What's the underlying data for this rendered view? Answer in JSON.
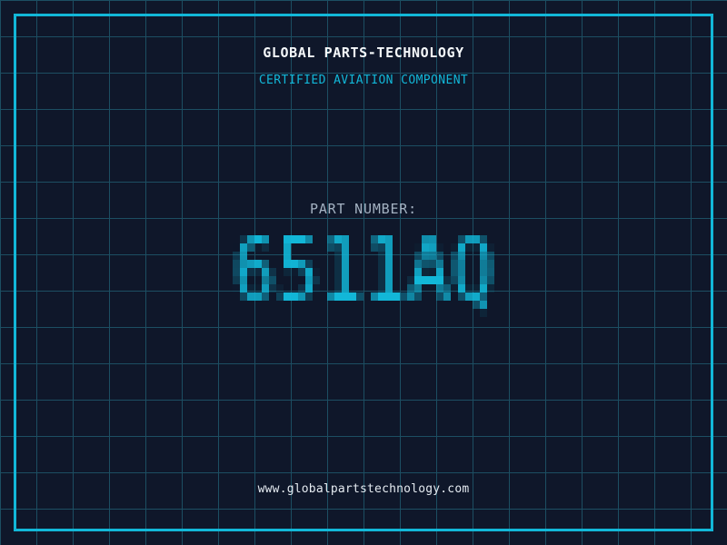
{
  "colors": {
    "background": "#0f172a",
    "grid": "#1c4e62",
    "accent": "#12b7d8",
    "title": "#f5f8fa",
    "label": "#a4b2c2",
    "url": "#e4eaf0"
  },
  "header": {
    "company": "GLOBAL PARTS-TECHNOLOGY",
    "tagline": "CERTIFIED AVIATION COMPONENT"
  },
  "part_number": {
    "label": "PART NUMBER:",
    "value": "6511AQ"
  },
  "footer": {
    "website": "www.globalpartstechnology.com"
  }
}
